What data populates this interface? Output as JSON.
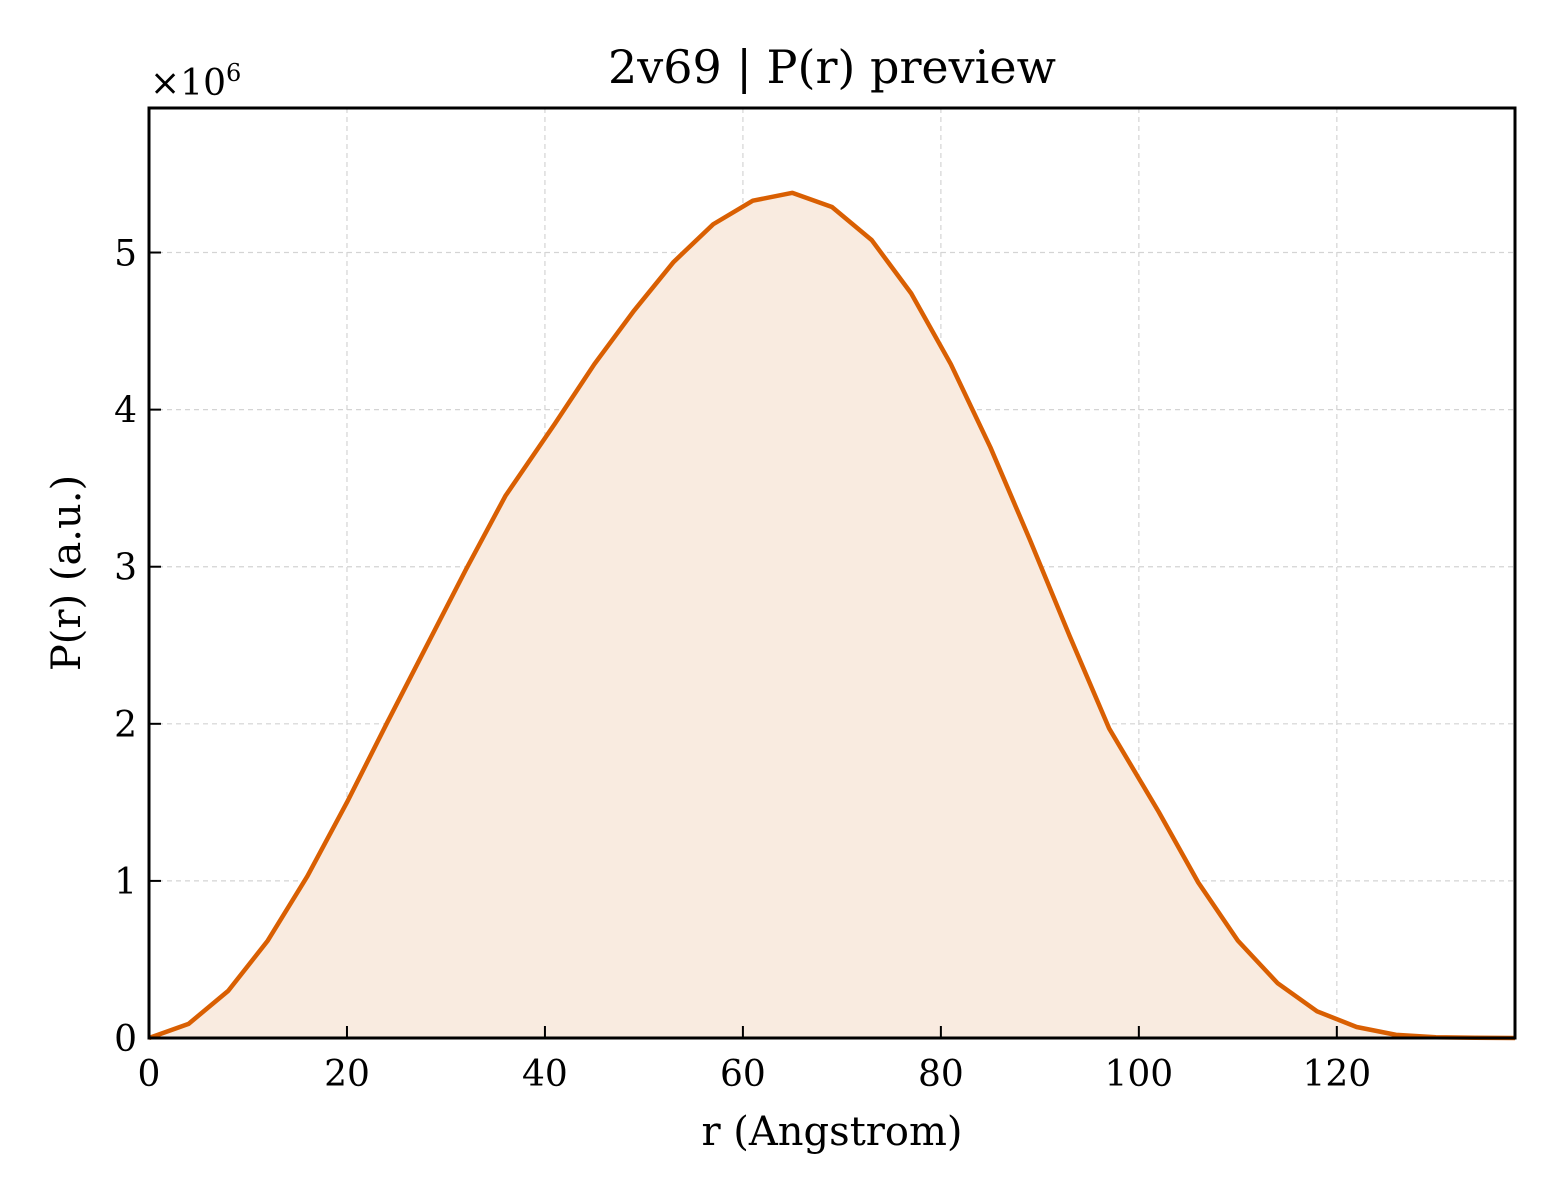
{
  "chart_data": {
    "type": "area",
    "title": "2v69 | P(r) preview",
    "xlabel": "r (Angstrom)",
    "ylabel": "P(r) (a.u.)",
    "y_offset_text": "×10",
    "y_offset_exponent": "6",
    "xlim": [
      0,
      138
    ],
    "ylim": [
      0,
      5.92
    ],
    "y_scale": 1000000,
    "grid": true,
    "line_color": "#d95f02",
    "fill_color": "#f9ebe0",
    "x_ticks": [
      0,
      20,
      40,
      60,
      80,
      100,
      120
    ],
    "y_ticks": [
      0,
      1,
      2,
      3,
      4,
      5
    ],
    "series": [
      {
        "x": [
          0,
          4,
          8,
          12,
          16,
          20,
          24,
          28,
          32,
          36,
          41,
          45,
          49,
          53,
          57,
          61,
          65,
          69,
          73,
          77,
          81,
          85,
          89,
          93,
          97,
          102,
          106,
          110,
          114,
          118,
          122,
          126,
          130,
          134,
          138
        ],
        "y": [
          0.0,
          0.09,
          0.3,
          0.62,
          1.03,
          1.5,
          2.0,
          2.49,
          2.98,
          3.45,
          3.91,
          4.29,
          4.63,
          4.94,
          5.18,
          5.33,
          5.38,
          5.29,
          5.08,
          4.74,
          4.29,
          3.76,
          3.17,
          2.56,
          1.97,
          1.44,
          0.99,
          0.62,
          0.35,
          0.17,
          0.07,
          0.02,
          0.005,
          0.002,
          0.0
        ]
      }
    ]
  }
}
